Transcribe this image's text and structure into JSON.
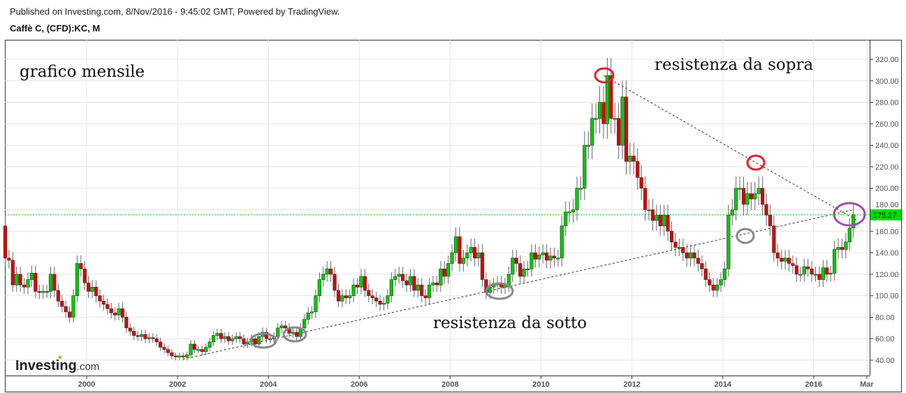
{
  "header": {
    "published": "Published on Investing.com, 8/Nov/2016 - 9:45:02 GMT, Powered by TradingView.",
    "symbol": "Caffè C, (CFD):KC, M"
  },
  "logo": {
    "brand": "Investing",
    "suffix": ".com"
  },
  "annotations": {
    "top_left": "grafico mensile",
    "upper": "resistenza da sopra",
    "lower": "resistenza da sotto"
  },
  "colors": {
    "up": "#00cc00",
    "down": "#e00000",
    "price_label_bg": "#00dd00",
    "upper_circle": "#e8202a",
    "lower_circle": "#888888",
    "current_circle": "#9b4fa6"
  },
  "chart_data": {
    "type": "candlestick",
    "interval": "monthly",
    "start": "1998-03",
    "first_open": 165,
    "close": [
      135,
      133,
      110,
      120,
      110,
      108,
      115,
      121,
      104,
      103,
      104,
      104,
      120,
      105,
      95,
      90,
      85,
      80,
      100,
      130,
      125,
      112,
      104,
      108,
      100,
      95,
      92,
      88,
      84,
      82,
      88,
      80,
      70,
      67,
      63,
      62,
      64,
      60,
      61,
      60,
      57,
      52,
      50,
      47,
      44,
      43,
      44,
      43,
      45,
      55,
      50,
      50,
      48,
      52,
      57,
      63,
      65,
      60,
      62,
      58,
      60,
      62,
      60,
      55,
      57,
      60,
      55,
      62,
      66,
      60,
      60,
      62,
      70,
      72,
      70,
      65,
      66,
      62,
      70,
      78,
      84,
      85,
      100,
      115,
      120,
      125,
      120,
      105,
      95,
      100,
      98,
      100,
      110,
      108,
      118,
      105,
      100,
      98,
      95,
      92,
      93,
      100,
      115,
      118,
      120,
      114,
      110,
      118,
      105,
      110,
      100,
      98,
      110,
      112,
      110,
      125,
      118,
      130,
      140,
      155,
      130,
      135,
      140,
      145,
      135,
      140,
      115,
      103,
      108,
      110,
      112,
      108,
      110,
      120,
      135,
      130,
      118,
      125,
      125,
      140,
      134,
      138,
      140,
      133,
      137,
      135,
      135,
      165,
      178,
      178,
      180,
      200,
      200,
      240,
      240,
      265,
      265,
      280,
      260,
      305,
      265,
      265,
      240,
      285,
      225,
      230,
      225,
      210,
      200,
      180,
      180,
      170,
      175,
      165,
      175,
      160,
      150,
      145,
      145,
      140,
      135,
      140,
      135,
      130,
      125,
      115,
      110,
      105,
      110,
      115,
      125,
      175,
      180,
      200,
      200,
      185,
      195,
      190,
      195,
      200,
      185,
      175,
      165,
      140,
      135,
      132,
      135,
      130,
      128,
      120,
      120,
      127,
      125,
      120,
      120,
      115,
      126,
      120,
      121,
      143,
      145,
      143,
      150,
      163,
      175.27
    ],
    "last_price": "175.27",
    "y_ticks": [
      "40.00",
      "60.00",
      "80.00",
      "100.00",
      "120.00",
      "140.00",
      "160.00",
      "180.00",
      "200.00",
      "220.00",
      "240.00",
      "260.00",
      "280.00",
      "300.00",
      "320.00"
    ],
    "x_ticks": [
      "2000",
      "2002",
      "2004",
      "2006",
      "2008",
      "2010",
      "2012",
      "2014",
      "2016",
      "Mar"
    ],
    "ylim": [
      25,
      330
    ],
    "grid": true,
    "trendlines": [
      {
        "name": "resistenza da sopra",
        "from": [
          "2011-05",
          305
        ],
        "to": [
          "2016-12",
          170
        ]
      },
      {
        "name": "resistenza da sotto",
        "from": [
          "2002-02",
          41
        ],
        "to": [
          "2016-11",
          180
        ]
      }
    ]
  }
}
